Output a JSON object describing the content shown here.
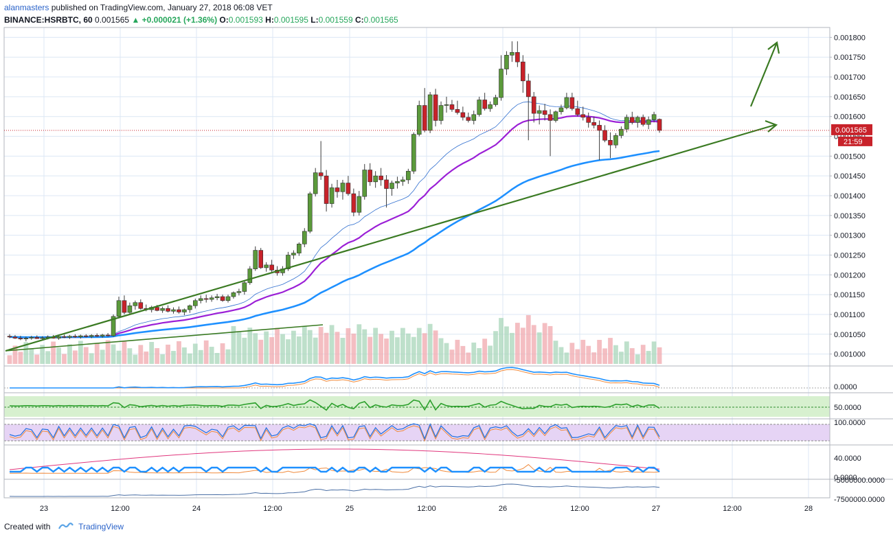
{
  "header": {
    "author": "alanmasters",
    "published_text": "published on TradingView.com, January 27, 2018 06:08 VET",
    "symbol": "BINANCE:HSRBTC, 60",
    "last": "0.001565",
    "change": "▲ +0.000021 (+1.36%)",
    "o_label": "O:",
    "o": "0.001593",
    "h_label": "H:",
    "h": "0.001595",
    "l_label": "L:",
    "l": "0.001559",
    "c_label": "C:",
    "c": "0.001565"
  },
  "footer": {
    "created_with": "Created with",
    "brand": "TradingView"
  },
  "colors": {
    "up": "#5b9a3b",
    "down": "#c8222a",
    "ema_purple": "#9b1fd6",
    "ema_blue": "#1e90ff",
    "trend": "#3a7a22",
    "grid": "#dce7f4"
  },
  "chart_data": {
    "type": "candlestick",
    "title": "",
    "x_tick_labels": [
      "23",
      "12:00",
      "24",
      "12:00",
      "25",
      "12:00",
      "26",
      "12:00",
      "27",
      "12:00",
      "28"
    ],
    "y_tick_labels": [
      "0.001800",
      "0.001750",
      "0.001700",
      "0.001650",
      "0.001600",
      "0.001550",
      "0.001500",
      "0.001450",
      "0.001400",
      "0.001350",
      "0.001300",
      "0.001250",
      "0.001200",
      "0.001150",
      "0.001100",
      "0.001050",
      "0.001000"
    ],
    "ylim": [
      0.000975,
      0.001825
    ],
    "price_label": "0.001565",
    "countdown_label": "21:59",
    "indicator_tick_labels": [
      "0.0000",
      "50.0000",
      "100.0000",
      "40.0000",
      "0.0000",
      "-5000000.0000",
      "-7500000.0000"
    ],
    "candles": [
      [
        0.001045,
        0.00105,
        0.00104,
        0.001043
      ],
      [
        0.001043,
        0.001048,
        0.001038,
        0.00104
      ],
      [
        0.00104,
        0.001046,
        0.001035,
        0.001038
      ],
      [
        0.001038,
        0.001044,
        0.001032,
        0.00104
      ],
      [
        0.00104,
        0.001046,
        0.001036,
        0.001042
      ],
      [
        0.001042,
        0.001047,
        0.001038,
        0.001039
      ],
      [
        0.001039,
        0.001045,
        0.001034,
        0.001041
      ],
      [
        0.001041,
        0.001047,
        0.001037,
        0.001043
      ],
      [
        0.001043,
        0.001048,
        0.001039,
        0.00104
      ],
      [
        0.00104,
        0.001046,
        0.001036,
        0.001044
      ],
      [
        0.001044,
        0.001049,
        0.00104,
        0.001042
      ],
      [
        0.001042,
        0.001048,
        0.001038,
        0.001045
      ],
      [
        0.001045,
        0.00105,
        0.001041,
        0.001043
      ],
      [
        0.001043,
        0.001049,
        0.001039,
        0.001046
      ],
      [
        0.001046,
        0.00105,
        0.001042,
        0.001044
      ],
      [
        0.001044,
        0.00105,
        0.00104,
        0.001047
      ],
      [
        0.001047,
        0.001052,
        0.001043,
        0.001045
      ],
      [
        0.001045,
        0.001051,
        0.001041,
        0.001048
      ],
      [
        0.001048,
        0.001053,
        0.001044,
        0.001046
      ],
      [
        0.001046,
        0.0011,
        0.001044,
        0.001095
      ],
      [
        0.001095,
        0.001145,
        0.00109,
        0.001135
      ],
      [
        0.001135,
        0.001148,
        0.0011,
        0.001105
      ],
      [
        0.001105,
        0.00113,
        0.0011,
        0.001122
      ],
      [
        0.001122,
        0.001135,
        0.001112,
        0.00113
      ],
      [
        0.00113,
        0.001138,
        0.001112,
        0.001115
      ],
      [
        0.001115,
        0.001125,
        0.001108,
        0.001112
      ],
      [
        0.001112,
        0.001122,
        0.001105,
        0.001118
      ],
      [
        0.001118,
        0.001124,
        0.001108,
        0.00111
      ],
      [
        0.00111,
        0.00112,
        0.001104,
        0.001115
      ],
      [
        0.001115,
        0.001123,
        0.001105,
        0.001108
      ],
      [
        0.001108,
        0.001118,
        0.001102,
        0.001112
      ],
      [
        0.001112,
        0.00112,
        0.001102,
        0.001106
      ],
      [
        0.001106,
        0.001115,
        0.001098,
        0.001112
      ],
      [
        0.001112,
        0.001125,
        0.001104,
        0.001122
      ],
      [
        0.001122,
        0.00114,
        0.001115,
        0.001135
      ],
      [
        0.001135,
        0.001148,
        0.001128,
        0.00114
      ],
      [
        0.00114,
        0.00115,
        0.00113,
        0.001138
      ],
      [
        0.001138,
        0.001148,
        0.001132,
        0.001142
      ],
      [
        0.001142,
        0.001152,
        0.001136,
        0.001145
      ],
      [
        0.001145,
        0.00115,
        0.001132,
        0.001135
      ],
      [
        0.001135,
        0.00115,
        0.00113,
        0.001145
      ],
      [
        0.001145,
        0.001158,
        0.00114,
        0.001155
      ],
      [
        0.001155,
        0.001165,
        0.001148,
        0.001158
      ],
      [
        0.001158,
        0.001185,
        0.00115,
        0.00118
      ],
      [
        0.00118,
        0.001222,
        0.001175,
        0.001215
      ],
      [
        0.001215,
        0.001272,
        0.00121,
        0.001262
      ],
      [
        0.001262,
        0.001268,
        0.001215,
        0.001218
      ],
      [
        0.001218,
        0.001232,
        0.001208,
        0.001225
      ],
      [
        0.001225,
        0.001238,
        0.001205,
        0.001212
      ],
      [
        0.001212,
        0.001222,
        0.001198,
        0.001205
      ],
      [
        0.001205,
        0.001222,
        0.001198,
        0.001215
      ],
      [
        0.001215,
        0.001258,
        0.00121,
        0.00125
      ],
      [
        0.00125,
        0.001262,
        0.00124,
        0.001255
      ],
      [
        0.001255,
        0.001282,
        0.001248,
        0.001278
      ],
      [
        0.001278,
        0.001318,
        0.00127,
        0.00131
      ],
      [
        0.00131,
        0.00141,
        0.001305,
        0.001405
      ],
      [
        0.001405,
        0.00147,
        0.001398,
        0.001458
      ],
      [
        0.001458,
        0.001538,
        0.00144,
        0.00145
      ],
      [
        0.00145,
        0.001465,
        0.00136,
        0.00138
      ],
      [
        0.00138,
        0.00143,
        0.00137,
        0.00142
      ],
      [
        0.00142,
        0.00144,
        0.001395,
        0.00141
      ],
      [
        0.00141,
        0.00144,
        0.00139,
        0.001432
      ],
      [
        0.001432,
        0.00145,
        0.0014,
        0.001405
      ],
      [
        0.001405,
        0.001418,
        0.001348,
        0.001358
      ],
      [
        0.001358,
        0.001412,
        0.00135,
        0.001398
      ],
      [
        0.001398,
        0.00148,
        0.00139,
        0.001465
      ],
      [
        0.001465,
        0.001482,
        0.001425,
        0.001435
      ],
      [
        0.001435,
        0.001462,
        0.00142,
        0.00145
      ],
      [
        0.00145,
        0.00147,
        0.001425,
        0.00144
      ],
      [
        0.00144,
        0.001452,
        0.00137,
        0.001418
      ],
      [
        0.001418,
        0.001438,
        0.0014,
        0.001432
      ],
      [
        0.001432,
        0.001448,
        0.001418,
        0.001436
      ],
      [
        0.001436,
        0.001448,
        0.001425,
        0.00144
      ],
      [
        0.00144,
        0.001468,
        0.00143,
        0.001462
      ],
      [
        0.001462,
        0.00156,
        0.001455,
        0.001555
      ],
      [
        0.001555,
        0.00164,
        0.00155,
        0.001628
      ],
      [
        0.001628,
        0.001672,
        0.00156,
        0.001565
      ],
      [
        0.001565,
        0.001662,
        0.001558,
        0.001655
      ],
      [
        0.001655,
        0.00167,
        0.001575,
        0.00159
      ],
      [
        0.00159,
        0.001638,
        0.00158,
        0.001628
      ],
      [
        0.001628,
        0.00165,
        0.00161,
        0.00163
      ],
      [
        0.00163,
        0.001642,
        0.001612,
        0.001618
      ],
      [
        0.001618,
        0.00164,
        0.001605,
        0.00161
      ],
      [
        0.00161,
        0.001625,
        0.00159,
        0.001598
      ],
      [
        0.001598,
        0.00161,
        0.001585,
        0.00159
      ],
      [
        0.00159,
        0.001615,
        0.00158,
        0.001605
      ],
      [
        0.001605,
        0.00165,
        0.0016,
        0.001642
      ],
      [
        0.001642,
        0.00166,
        0.001615,
        0.00162
      ],
      [
        0.00162,
        0.001638,
        0.001612,
        0.00163
      ],
      [
        0.00163,
        0.001655,
        0.001625,
        0.001648
      ],
      [
        0.001648,
        0.001755,
        0.00164,
        0.00172
      ],
      [
        0.00172,
        0.001765,
        0.001705,
        0.001755
      ],
      [
        0.001755,
        0.00179,
        0.001738,
        0.001762
      ],
      [
        0.001762,
        0.00179,
        0.001725,
        0.001738
      ],
      [
        0.001738,
        0.001755,
        0.00166,
        0.00169
      ],
      [
        0.00169,
        0.001708,
        0.00154,
        0.00165
      ],
      [
        0.00165,
        0.001662,
        0.001585,
        0.001608
      ],
      [
        0.001608,
        0.001628,
        0.00158,
        0.001615
      ],
      [
        0.001615,
        0.001632,
        0.00159,
        0.001605
      ],
      [
        0.001605,
        0.001618,
        0.0015,
        0.00159
      ],
      [
        0.00159,
        0.001615,
        0.001585,
        0.001612
      ],
      [
        0.001612,
        0.00163,
        0.001605,
        0.001622
      ],
      [
        0.001622,
        0.00166,
        0.001618,
        0.001648
      ],
      [
        0.001648,
        0.00166,
        0.001615,
        0.00162
      ],
      [
        0.00162,
        0.00164,
        0.0016,
        0.001605
      ],
      [
        0.001605,
        0.001625,
        0.00159,
        0.001598
      ],
      [
        0.001598,
        0.00161,
        0.001572,
        0.001585
      ],
      [
        0.001585,
        0.0016,
        0.00157,
        0.001578
      ],
      [
        0.001578,
        0.00159,
        0.00149,
        0.001565
      ],
      [
        0.001565,
        0.001578,
        0.001535,
        0.00154
      ],
      [
        0.00154,
        0.00156,
        0.001495,
        0.001528
      ],
      [
        0.001528,
        0.001558,
        0.00152,
        0.001552
      ],
      [
        0.001552,
        0.001575,
        0.001545,
        0.001568
      ],
      [
        0.001568,
        0.001605,
        0.00156,
        0.001598
      ],
      [
        0.001598,
        0.001612,
        0.00158,
        0.001585
      ],
      [
        0.001585,
        0.001602,
        0.001572,
        0.001598
      ],
      [
        0.001598,
        0.001605,
        0.001575,
        0.00158
      ],
      [
        0.00158,
        0.0016,
        0.001568,
        0.001592
      ],
      [
        0.001592,
        0.001612,
        0.001585,
        0.001605
      ],
      [
        0.001593,
        0.001595,
        0.001559,
        0.001565
      ]
    ]
  }
}
